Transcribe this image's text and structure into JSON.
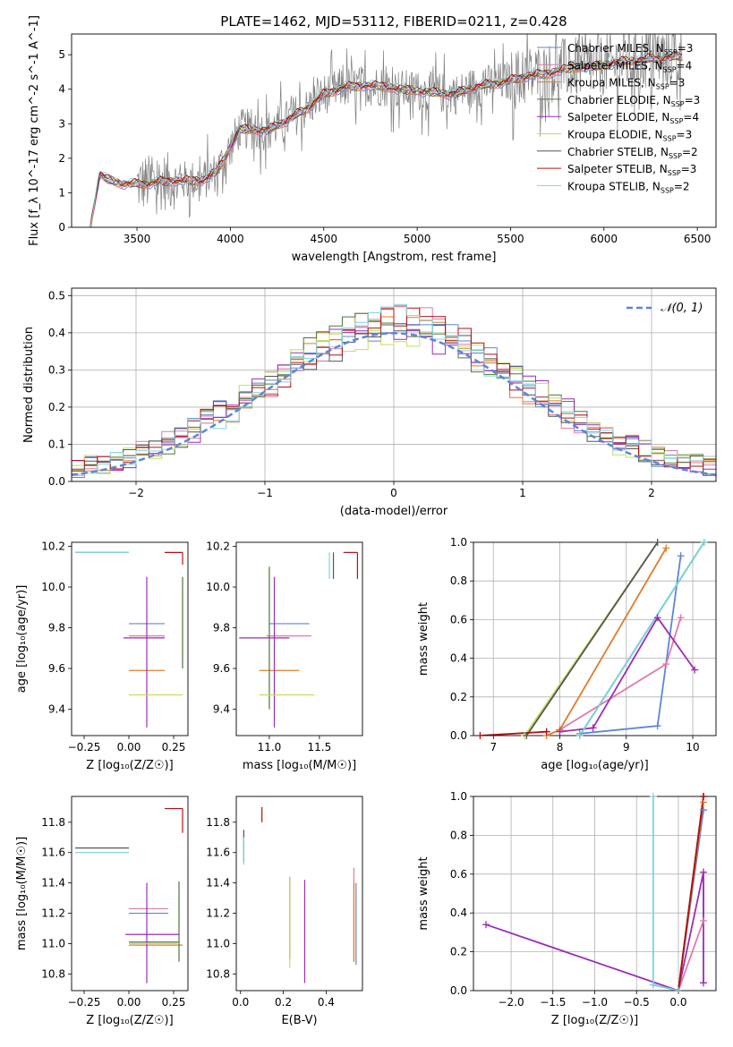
{
  "figure": {
    "title": "PLATE=1462, MJD=53112, FIBERID=0211, z=0.428"
  },
  "colors": {
    "Chabrier MILES": "#5b86d6",
    "Salpeter MILES": "#e07ba8",
    "Kroupa MILES": "#e07b2a",
    "Chabrier ELODIE": "#4a7a3a",
    "Salpeter ELODIE": "#9a2db8",
    "Kroupa ELODIE": "#c5de5a",
    "Chabrier STELIB": "#555555",
    "Salpeter STELIB": "#b41010",
    "Kroupa STELIB": "#7ed3e0",
    "data": "#7f7f7f",
    "normal_curve": "#5b86d6"
  },
  "legend_items": [
    {
      "model": "Chabrier MILES",
      "label": "Chabrier MILES, N",
      "sub": "SSP",
      "tail": "=3"
    },
    {
      "model": "Salpeter MILES",
      "label": "Salpeter MILES, N",
      "sub": "SSP",
      "tail": "=4"
    },
    {
      "model": "Kroupa MILES",
      "label": "Kroupa MILES, N",
      "sub": "SSP",
      "tail": "=3"
    },
    {
      "model": "Chabrier ELODIE",
      "label": "Chabrier ELODIE, N",
      "sub": "SSP",
      "tail": "=3"
    },
    {
      "model": "Salpeter ELODIE",
      "label": "Salpeter ELODIE, N",
      "sub": "SSP",
      "tail": "=4"
    },
    {
      "model": "Kroupa ELODIE",
      "label": "Kroupa ELODIE, N",
      "sub": "SSP",
      "tail": "=3"
    },
    {
      "model": "Chabrier STELIB",
      "label": "Chabrier STELIB, N",
      "sub": "SSP",
      "tail": "=2"
    },
    {
      "model": "Salpeter STELIB",
      "label": "Salpeter STELIB, N",
      "sub": "SSP",
      "tail": "=3"
    },
    {
      "model": "Kroupa STELIB",
      "label": "Kroupa STELIB, N",
      "sub": "SSP",
      "tail": "=2"
    }
  ],
  "chart_data": [
    {
      "id": "spectrum",
      "type": "line",
      "title": "PLATE=1462, MJD=53112, FIBERID=0211, z=0.428",
      "xlabel": "wavelength [Angstrom, rest frame]",
      "ylabel": "Flux [f_λ 10^-17 erg cm^-2 s^-1 A^-1]",
      "xlim": [
        3150,
        6600
      ],
      "ylim": [
        0,
        5.6
      ],
      "xticks": [
        3500,
        4000,
        4500,
        5000,
        5500,
        6000,
        6500
      ],
      "yticks": [
        0,
        1,
        2,
        3,
        4,
        5
      ],
      "continuum_x": [
        3250,
        3300,
        3350,
        3450,
        3500,
        3700,
        3850,
        3920,
        3960,
        4050,
        4200,
        4300,
        4400,
        4500,
        4600,
        4700,
        4800,
        4900,
        5000,
        5100,
        5200,
        5300,
        5400,
        5500,
        5600,
        5700,
        5800,
        5900,
        6000,
        6100,
        6200,
        6300,
        6420
      ],
      "continuum_y": [
        0.0,
        1.55,
        1.35,
        1.25,
        1.25,
        1.35,
        1.35,
        1.6,
        1.9,
        2.85,
        2.8,
        3.1,
        3.4,
        3.85,
        4.05,
        4.1,
        4.1,
        4.0,
        3.95,
        3.9,
        3.85,
        4.05,
        4.15,
        4.25,
        4.4,
        4.45,
        4.6,
        4.65,
        4.7,
        4.8,
        4.85,
        4.9,
        4.95
      ],
      "data_x_range": [
        3500,
        6420
      ],
      "model_x_range": [
        3250,
        6420
      ],
      "series": [
        "Chabrier MILES",
        "Salpeter MILES",
        "Kroupa MILES",
        "Chabrier ELODIE",
        "Salpeter ELODIE",
        "Kroupa ELODIE",
        "Chabrier STELIB",
        "Salpeter STELIB",
        "Kroupa STELIB"
      ],
      "legend_placement": "upper right"
    },
    {
      "id": "residuals",
      "type": "histogram",
      "xlabel": "(data-model)/error",
      "ylabel": "Normed distribution",
      "xlim": [
        -2.5,
        2.5
      ],
      "ylim": [
        0,
        0.52
      ],
      "xticks": [
        -2,
        -1,
        0,
        1,
        2
      ],
      "yticks": [
        0.0,
        0.1,
        0.2,
        0.3,
        0.4,
        0.5
      ],
      "normal_label": "𝒩(0, 1)",
      "legend_placement": "upper right",
      "grid": true
    },
    {
      "id": "age_vs_Z",
      "type": "errorbar",
      "xlabel": "Z [log₁₀(Z/Z☉)]",
      "ylabel": "age  [log₁₀(age/yr)]",
      "xlim": [
        -0.32,
        0.33
      ],
      "ylim": [
        9.27,
        10.22
      ],
      "xticks": [
        -0.25,
        0.0,
        0.25
      ],
      "yticks": [
        9.4,
        9.6,
        9.8,
        10.0,
        10.2
      ],
      "points": [
        {
          "model": "Chabrier MILES",
          "x": 0.15,
          "xerr": [
            0.15,
            0.05
          ],
          "y": 9.82,
          "yerr": [
            0.0,
            0.0
          ]
        },
        {
          "model": "Salpeter MILES",
          "x": 0.12,
          "xerr": [
            0.12,
            0.08
          ],
          "y": 9.76,
          "yerr": [
            0.0,
            0.0
          ]
        },
        {
          "model": "Kroupa MILES",
          "x": 0.13,
          "xerr": [
            0.13,
            0.07
          ],
          "y": 9.59,
          "yerr": [
            0.0,
            0.0
          ]
        },
        {
          "model": "Chabrier ELODIE",
          "x": 0.3,
          "xerr": [
            0.0,
            0.0
          ],
          "y": 9.75,
          "yerr": [
            0.15,
            0.3
          ]
        },
        {
          "model": "Salpeter ELODIE",
          "x": 0.1,
          "xerr": [
            0.13,
            0.1
          ],
          "y": 9.75,
          "yerr": [
            0.44,
            0.3
          ]
        },
        {
          "model": "Kroupa ELODIE",
          "x": 0.2,
          "xerr": [
            0.2,
            0.1
          ],
          "y": 9.47,
          "yerr": [
            0.0,
            0.0
          ]
        },
        {
          "model": "Chabrier STELIB",
          "x": -0.3,
          "xerr": [
            0.0,
            0.3
          ],
          "y": 10.17,
          "yerr": [
            0.0,
            0.0
          ]
        },
        {
          "model": "Salpeter STELIB",
          "x": 0.3,
          "xerr": [
            0.1,
            0.0
          ],
          "y": 10.17,
          "yerr": [
            0.06,
            0.0
          ]
        },
        {
          "model": "Kroupa STELIB",
          "x": -0.3,
          "xerr": [
            0.0,
            0.3
          ],
          "y": 10.17,
          "yerr": [
            0.0,
            0.0
          ]
        }
      ]
    },
    {
      "id": "age_vs_mass",
      "type": "errorbar",
      "xlabel": "mass [log₁₀(M/M☉)]",
      "ylabel": "",
      "xlim": [
        10.67,
        11.93
      ],
      "ylim": [
        9.27,
        10.22
      ],
      "xticks": [
        11.0,
        11.5
      ],
      "yticks": [
        9.4,
        9.6,
        9.8,
        10.0,
        10.2
      ],
      "points": [
        {
          "model": "Chabrier MILES",
          "x": 11.2,
          "xerr": [
            0.2,
            0.2
          ],
          "y": 9.82,
          "yerr": [
            0.0,
            0.0
          ]
        },
        {
          "model": "Salpeter MILES",
          "x": 11.22,
          "xerr": [
            0.25,
            0.2
          ],
          "y": 9.76,
          "yerr": [
            0.0,
            0.0
          ]
        },
        {
          "model": "Kroupa MILES",
          "x": 11.0,
          "xerr": [
            0.1,
            0.3
          ],
          "y": 9.59,
          "yerr": [
            0.0,
            0.0
          ]
        },
        {
          "model": "Chabrier ELODIE",
          "x": 11.0,
          "xerr": [
            0.0,
            0.0
          ],
          "y": 9.7,
          "yerr": [
            0.3,
            0.4
          ]
        },
        {
          "model": "Salpeter ELODIE",
          "x": 11.05,
          "xerr": [
            0.35,
            0.15
          ],
          "y": 9.75,
          "yerr": [
            0.44,
            0.3
          ]
        },
        {
          "model": "Kroupa ELODIE",
          "x": 11.0,
          "xerr": [
            0.1,
            0.45
          ],
          "y": 9.47,
          "yerr": [
            0.0,
            0.0
          ]
        },
        {
          "model": "Chabrier STELIB",
          "x": 11.64,
          "xerr": [
            0.0,
            0.0
          ],
          "y": 10.17,
          "yerr": [
            0.13,
            0.0
          ]
        },
        {
          "model": "Salpeter STELIB",
          "x": 11.88,
          "xerr": [
            0.14,
            0.0
          ],
          "y": 10.17,
          "yerr": [
            0.13,
            0.0
          ]
        },
        {
          "model": "Kroupa STELIB",
          "x": 11.6,
          "xerr": [
            0.0,
            0.0
          ],
          "y": 10.17,
          "yerr": [
            0.13,
            0.0
          ]
        }
      ]
    },
    {
      "id": "mass_weight_vs_age",
      "type": "line",
      "xlabel": "age  [log₁₀(age/yr)]",
      "ylabel": "mass weight",
      "xlim": [
        6.7,
        10.35
      ],
      "ylim": [
        0,
        1.0
      ],
      "xticks": [
        7,
        8,
        9,
        10
      ],
      "yticks": [
        0.0,
        0.2,
        0.4,
        0.6,
        0.8,
        1.0
      ],
      "grid": true,
      "series": [
        {
          "model": "Chabrier MILES",
          "x": [
            8.3,
            9.47,
            9.82
          ],
          "y": [
            0.01,
            0.05,
            0.93
          ]
        },
        {
          "model": "Salpeter MILES",
          "x": [
            8.0,
            9.6,
            9.82
          ],
          "y": [
            0.03,
            0.37,
            0.61
          ]
        },
        {
          "model": "Kroupa MILES",
          "x": [
            7.8,
            8.0,
            9.6
          ],
          "y": [
            0.0,
            0.03,
            0.97
          ]
        },
        {
          "model": "Chabrier ELODIE",
          "x": [
            8.3,
            10.17
          ],
          "y": [
            0.0,
            1.0
          ]
        },
        {
          "model": "Salpeter ELODIE",
          "x": [
            8.0,
            8.5,
            9.47,
            10.03
          ],
          "y": [
            0.02,
            0.04,
            0.61,
            0.34
          ]
        },
        {
          "model": "Kroupa ELODIE",
          "x": [
            7.47,
            9.47
          ],
          "y": [
            0.0,
            1.0
          ]
        },
        {
          "model": "Chabrier STELIB",
          "x": [
            7.5,
            9.47
          ],
          "y": [
            0.0,
            1.0
          ]
        },
        {
          "model": "Salpeter STELIB",
          "x": [
            6.8,
            7.8
          ],
          "y": [
            0.0,
            0.02
          ]
        },
        {
          "model": "Kroupa STELIB",
          "x": [
            8.3,
            10.17
          ],
          "y": [
            0.0,
            1.0
          ]
        }
      ]
    },
    {
      "id": "mass_vs_Z",
      "type": "errorbar",
      "xlabel": "Z [log₁₀(Z/Z☉)]",
      "ylabel": "mass [log₁₀(M/M☉)]",
      "xlim": [
        -0.32,
        0.33
      ],
      "ylim": [
        10.69,
        11.97
      ],
      "xticks": [
        -0.25,
        0.0,
        0.25
      ],
      "yticks": [
        10.8,
        11.0,
        11.2,
        11.4,
        11.6,
        11.8
      ],
      "points": [
        {
          "model": "Chabrier MILES",
          "x": 0.12,
          "xerr": [
            0.12,
            0.1
          ],
          "y": 11.2,
          "yerr": [
            0.0,
            0.0
          ]
        },
        {
          "model": "Salpeter MILES",
          "x": 0.12,
          "xerr": [
            0.12,
            0.1
          ],
          "y": 11.23,
          "yerr": [
            0.0,
            0.0
          ]
        },
        {
          "model": "Kroupa MILES",
          "x": 0.12,
          "xerr": [
            0.12,
            0.18
          ],
          "y": 10.99,
          "yerr": [
            0.0,
            0.0
          ]
        },
        {
          "model": "Chabrier ELODIE",
          "x": 0.28,
          "xerr": [
            0.28,
            0.0
          ],
          "y": 11.01,
          "yerr": [
            0.13,
            0.4
          ]
        },
        {
          "model": "Salpeter ELODIE",
          "x": 0.1,
          "xerr": [
            0.12,
            0.18
          ],
          "y": 11.06,
          "yerr": [
            0.32,
            0.34
          ]
        },
        {
          "model": "Kroupa ELODIE",
          "x": 0.15,
          "xerr": [
            0.15,
            0.12
          ],
          "y": 11.0,
          "yerr": [
            0.0,
            0.0
          ]
        },
        {
          "model": "Chabrier STELIB",
          "x": -0.3,
          "xerr": [
            0.0,
            0.3
          ],
          "y": 11.63,
          "yerr": [
            0.0,
            0.0
          ]
        },
        {
          "model": "Salpeter STELIB",
          "x": 0.3,
          "xerr": [
            0.1,
            0.0
          ],
          "y": 11.89,
          "yerr": [
            0.16,
            0.0
          ]
        },
        {
          "model": "Kroupa STELIB",
          "x": -0.3,
          "xerr": [
            0.0,
            0.3
          ],
          "y": 11.6,
          "yerr": [
            0.0,
            0.0
          ]
        }
      ]
    },
    {
      "id": "mass_vs_EBV",
      "type": "errorbar",
      "xlabel": "E(B-V)",
      "ylabel": "",
      "xlim": [
        -0.02,
        0.57
      ],
      "ylim": [
        10.69,
        11.97
      ],
      "xticks": [
        0.0,
        0.2,
        0.4
      ],
      "yticks": [
        10.8,
        11.0,
        11.2,
        11.4,
        11.6,
        11.8
      ],
      "points": [
        {
          "model": "Chabrier MILES",
          "x": 0.54,
          "y": 11.1,
          "yerr": [
            0.24,
            0.3
          ]
        },
        {
          "model": "Salpeter MILES",
          "x": 0.53,
          "y": 11.2,
          "yerr": [
            0.32,
            0.3
          ]
        },
        {
          "model": "Kroupa MILES",
          "x": 0.53,
          "y": 11.1,
          "yerr": [
            0.22,
            0.3
          ]
        },
        {
          "model": "Chabrier ELODIE",
          "x": 0.23,
          "y": 11.1,
          "yerr": [
            0.2,
            0.34
          ]
        },
        {
          "model": "Salpeter ELODIE",
          "x": 0.3,
          "y": 11.06,
          "yerr": [
            0.32,
            0.36
          ]
        },
        {
          "model": "Kroupa ELODIE",
          "x": 0.23,
          "y": 11.16,
          "yerr": [
            0.32,
            0.28
          ]
        },
        {
          "model": "Chabrier STELIB",
          "x": 0.015,
          "y": 11.6,
          "yerr": [
            0.06,
            0.15
          ]
        },
        {
          "model": "Salpeter STELIB",
          "x": 0.1,
          "y": 11.8,
          "yerr": [
            0.0,
            0.1
          ]
        },
        {
          "model": "Kroupa STELIB",
          "x": 0.015,
          "y": 11.6,
          "yerr": [
            0.08,
            0.1
          ]
        }
      ]
    },
    {
      "id": "mass_weight_vs_Z",
      "type": "line",
      "xlabel": "Z [log₁₀(Z/Z☉)]",
      "ylabel": "mass weight",
      "xlim": [
        -2.45,
        0.45
      ],
      "ylim": [
        0,
        1.0
      ],
      "xticks": [
        -2.0,
        -1.5,
        -1.0,
        -0.5,
        0.0
      ],
      "yticks": [
        0.0,
        0.2,
        0.4,
        0.6,
        0.8,
        1.0
      ],
      "grid": true,
      "series": [
        {
          "model": "Chabrier MILES",
          "x": [
            -0.3,
            0.0,
            0.3
          ],
          "y": [
            0.03,
            0.0,
            0.93
          ]
        },
        {
          "model": "Salpeter MILES",
          "x": [
            0.0,
            0.3,
            0.3
          ],
          "y": [
            0.0,
            0.36,
            0.61
          ]
        },
        {
          "model": "Kroupa MILES",
          "x": [
            0.0,
            0.3
          ],
          "y": [
            0.0,
            0.97
          ]
        },
        {
          "model": "Chabrier ELODIE",
          "x": [
            0.0,
            0.3
          ],
          "y": [
            0.0,
            1.0
          ]
        },
        {
          "model": "Salpeter ELODIE",
          "x": [
            -2.3,
            0.0,
            0.3,
            0.3
          ],
          "y": [
            0.34,
            0.0,
            0.61,
            0.04
          ]
        },
        {
          "model": "Kroupa ELODIE",
          "x": [
            0.0,
            0.3
          ],
          "y": [
            0.0,
            1.0
          ]
        },
        {
          "model": "Chabrier STELIB",
          "x": [
            0.0,
            0.3
          ],
          "y": [
            0.0,
            1.0
          ]
        },
        {
          "model": "Salpeter STELIB",
          "x": [
            0.0,
            0.3
          ],
          "y": [
            0.0,
            1.0
          ]
        },
        {
          "model": "Kroupa STELIB",
          "x": [
            -0.3,
            -0.3,
            0.0
          ],
          "y": [
            1.0,
            0.03,
            0.0
          ]
        }
      ]
    }
  ]
}
